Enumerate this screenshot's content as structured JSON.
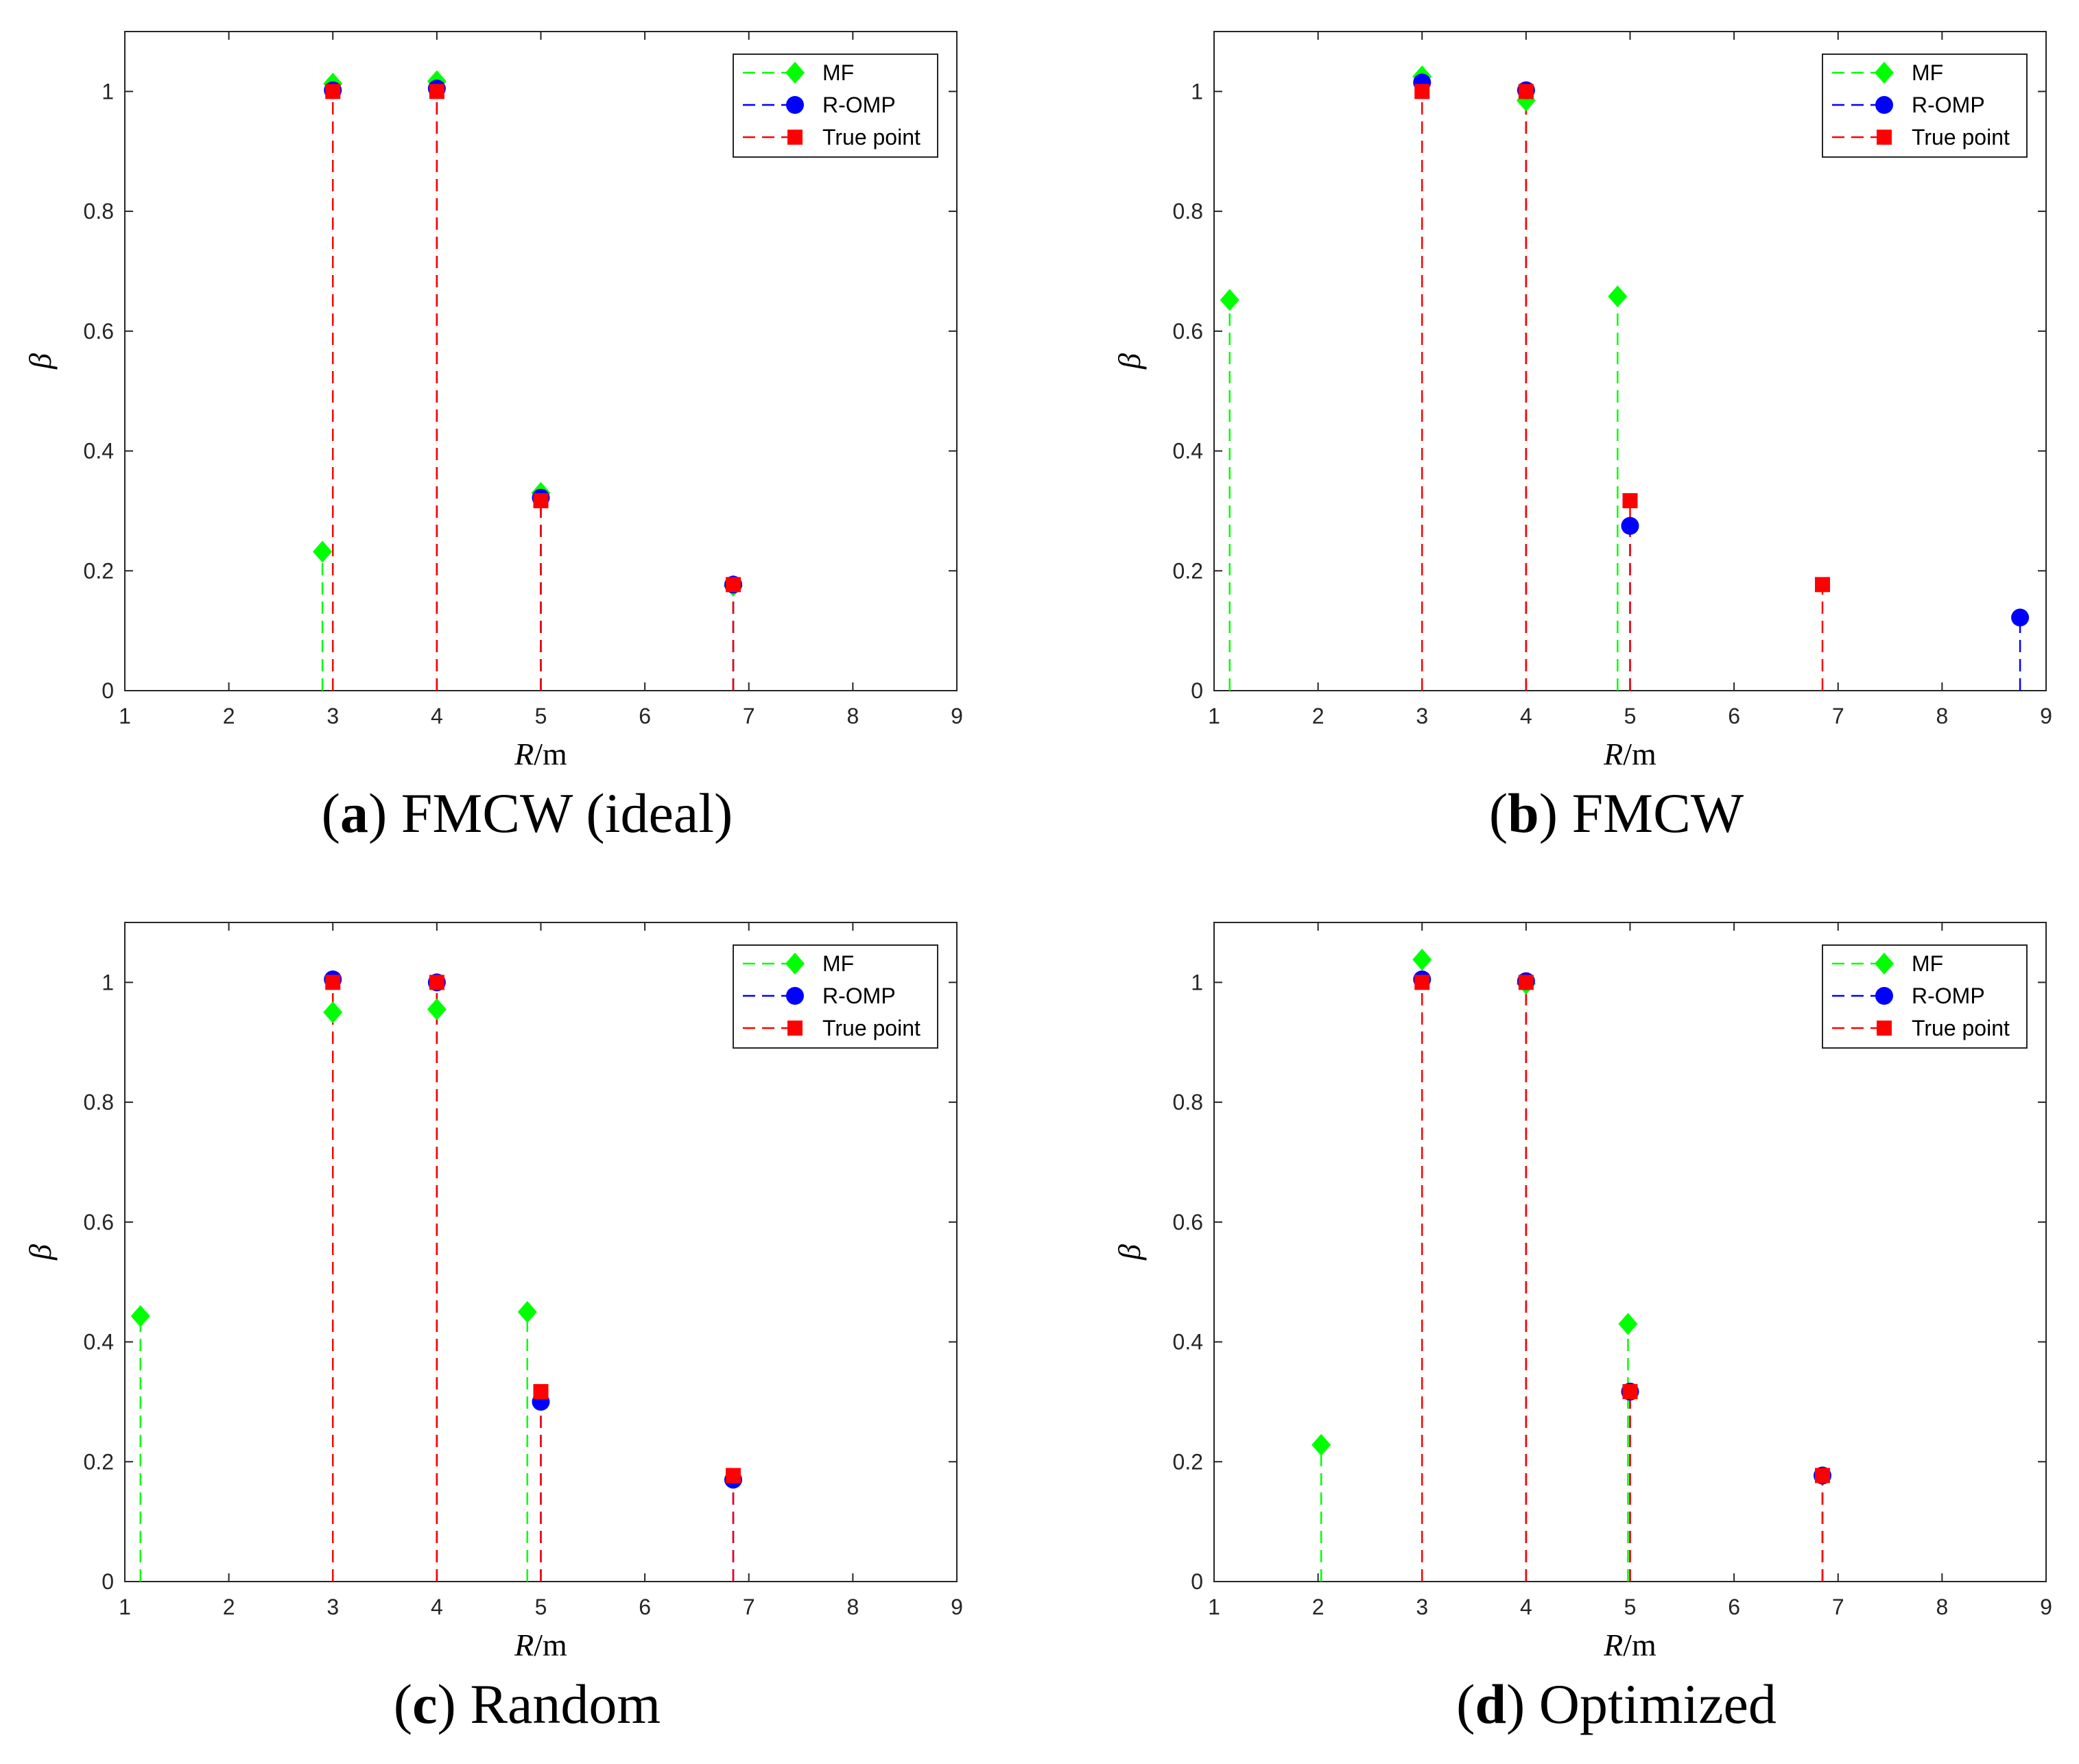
{
  "colors": {
    "mf": "#00ff00",
    "romp": "#0000ff",
    "true": "#ff0000",
    "axes": "#262626"
  },
  "legend_labels": [
    "MF",
    "R-OMP",
    "True point"
  ],
  "chart_data": [
    {
      "type": "stem",
      "caption_letter": "a",
      "caption_text": "FMCW (ideal)",
      "xlabel_italic": "R",
      "xlabel_rest": "/m",
      "ylabel": "β",
      "xlim": [
        1,
        9
      ],
      "ylim": [
        0,
        1.1
      ],
      "xticks": [
        "1",
        "2",
        "3",
        "4",
        "5",
        "6",
        "7",
        "8",
        "9"
      ],
      "yticks": [
        "0",
        "0.2",
        "0.4",
        "0.6",
        "0.8",
        "1"
      ],
      "legend_position": "top-right",
      "series": [
        {
          "name": "MF",
          "marker": "diamond",
          "x": [
            2.9,
            3.0,
            4.0,
            5.0,
            6.85
          ],
          "y": [
            0.232,
            1.013,
            1.017,
            0.33,
            0.175
          ]
        },
        {
          "name": "R-OMP",
          "marker": "circle",
          "x": [
            3.0,
            4.0,
            5.0,
            6.85
          ],
          "y": [
            1.002,
            1.005,
            0.322,
            0.177
          ]
        },
        {
          "name": "True point",
          "marker": "square",
          "x": [
            3.0,
            4.0,
            5.0,
            6.85
          ],
          "y": [
            1.0,
            1.0,
            0.317,
            0.177
          ]
        }
      ]
    },
    {
      "type": "stem",
      "caption_letter": "b",
      "caption_text": "FMCW",
      "xlabel_italic": "R",
      "xlabel_rest": "/m",
      "ylabel": "β",
      "xlim": [
        1,
        9
      ],
      "ylim": [
        0,
        1.1
      ],
      "xticks": [
        "1",
        "2",
        "3",
        "4",
        "5",
        "6",
        "7",
        "8",
        "9"
      ],
      "yticks": [
        "0",
        "0.2",
        "0.4",
        "0.6",
        "0.8",
        "1"
      ],
      "legend_position": "top-right",
      "series": [
        {
          "name": "MF",
          "marker": "diamond",
          "x": [
            1.15,
            3.0,
            4.0,
            4.88
          ],
          "y": [
            0.652,
            1.025,
            0.985,
            0.658
          ]
        },
        {
          "name": "R-OMP",
          "marker": "circle",
          "x": [
            3.0,
            4.0,
            5.0,
            8.75
          ],
          "y": [
            1.015,
            1.002,
            0.275,
            0.122
          ]
        },
        {
          "name": "True point",
          "marker": "square",
          "x": [
            3.0,
            4.0,
            5.0,
            6.85
          ],
          "y": [
            1.0,
            1.0,
            0.317,
            0.177
          ]
        }
      ]
    },
    {
      "type": "stem",
      "caption_letter": "c",
      "caption_text": "Random",
      "xlabel_italic": "R",
      "xlabel_rest": "/m",
      "ylabel": "β",
      "xlim": [
        1,
        9
      ],
      "ylim": [
        0,
        1.1
      ],
      "xticks": [
        "1",
        "2",
        "3",
        "4",
        "5",
        "6",
        "7",
        "8",
        "9"
      ],
      "yticks": [
        "0",
        "0.2",
        "0.4",
        "0.6",
        "0.8",
        "1"
      ],
      "legend_position": "top-right",
      "series": [
        {
          "name": "MF",
          "marker": "diamond",
          "x": [
            1.15,
            3.0,
            4.0,
            4.87
          ],
          "y": [
            0.443,
            0.95,
            0.955,
            0.45
          ]
        },
        {
          "name": "R-OMP",
          "marker": "circle",
          "x": [
            3.0,
            4.0,
            5.0,
            6.85
          ],
          "y": [
            1.005,
            1.0,
            0.3,
            0.17
          ]
        },
        {
          "name": "True point",
          "marker": "square",
          "x": [
            3.0,
            4.0,
            5.0,
            6.85
          ],
          "y": [
            1.0,
            1.0,
            0.317,
            0.177
          ]
        }
      ]
    },
    {
      "type": "stem",
      "caption_letter": "d",
      "caption_text": "Optimized",
      "xlabel_italic": "R",
      "xlabel_rest": "/m",
      "ylabel": "β",
      "xlim": [
        1,
        9
      ],
      "ylim": [
        0,
        1.1
      ],
      "xticks": [
        "1",
        "2",
        "3",
        "4",
        "5",
        "6",
        "7",
        "8",
        "9"
      ],
      "yticks": [
        "0",
        "0.2",
        "0.4",
        "0.6",
        "0.8",
        "1"
      ],
      "legend_position": "top-right",
      "series": [
        {
          "name": "MF",
          "marker": "diamond",
          "x": [
            2.03,
            3.0,
            4.0,
            4.98
          ],
          "y": [
            0.228,
            1.038,
            0.998,
            0.43
          ]
        },
        {
          "name": "R-OMP",
          "marker": "circle",
          "x": [
            3.0,
            4.0,
            5.0,
            6.85
          ],
          "y": [
            1.005,
            1.002,
            0.317,
            0.177
          ]
        },
        {
          "name": "True point",
          "marker": "square",
          "x": [
            3.0,
            4.0,
            5.0,
            6.85
          ],
          "y": [
            1.0,
            1.0,
            0.317,
            0.177
          ]
        }
      ]
    }
  ]
}
